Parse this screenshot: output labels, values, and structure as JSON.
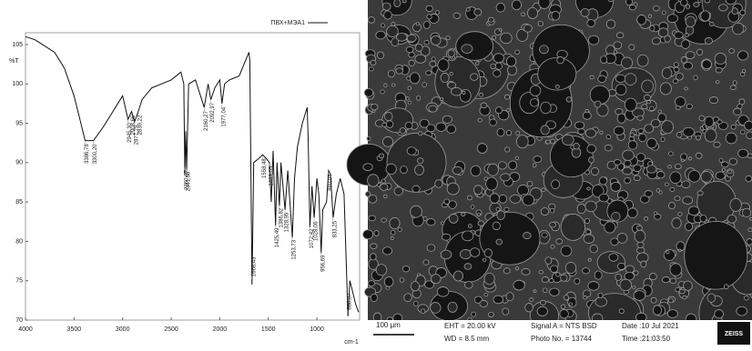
{
  "chart_data": {
    "type": "line",
    "legend": "ПВХ+МЭА1",
    "ylabel": "%T",
    "xlabel": "cm-1",
    "xlim": [
      4000,
      560
    ],
    "xticks": [
      4000,
      3500,
      3000,
      2500,
      2000,
      1500,
      1000
    ],
    "ylim": [
      70,
      106.5
    ],
    "yticks": [
      70,
      75,
      80,
      85,
      90,
      95,
      100,
      105
    ],
    "series": [
      {
        "name": "ПВХ+МЭА1",
        "color": "#111111",
        "x": [
          4000,
          3900,
          3800,
          3700,
          3600,
          3500,
          3450,
          3400,
          3386,
          3300,
          3200,
          3100,
          3000,
          2945,
          2908,
          2877,
          2839,
          2800,
          2700,
          2600,
          2500,
          2400,
          2370,
          2360,
          2350,
          2341,
          2320,
          2250,
          2160,
          2120,
          2092,
          2050,
          2000,
          1977,
          1950,
          1900,
          1800,
          1700,
          1690,
          1668,
          1650,
          1600,
          1558,
          1520,
          1489,
          1470,
          1450,
          1425,
          1410,
          1386,
          1370,
          1328,
          1300,
          1253,
          1230,
          1200,
          1150,
          1100,
          1090,
          1072,
          1050,
          1028,
          1000,
          980,
          956,
          940,
          900,
          880,
          860,
          833,
          800,
          760,
          720,
          680,
          660,
          640,
          600,
          570
        ],
        "values": [
          106,
          105.6,
          104.8,
          104,
          102,
          98.5,
          96,
          93.5,
          92.8,
          92.8,
          94.5,
          96.5,
          98.5,
          95.5,
          96.5,
          95.2,
          96.5,
          98,
          99.5,
          100,
          100.5,
          101.5,
          100,
          88.5,
          94,
          89,
          100,
          100.5,
          97,
          100,
          98,
          99.5,
          100.5,
          97.5,
          100,
          100.5,
          101,
          104,
          103,
          74.5,
          90,
          90.5,
          91,
          90.5,
          90,
          85,
          91.5,
          82,
          90,
          84.5,
          90,
          84,
          89,
          80.5,
          88,
          92,
          95,
          97,
          93,
          81.8,
          87,
          83,
          88,
          86,
          78.5,
          84,
          85,
          89,
          88.5,
          83,
          86,
          88,
          86,
          70.5,
          75,
          74,
          72,
          71
        ]
      }
    ],
    "peak_labels": [
      {
        "value": 3386.78,
        "label": "3386,78"
      },
      {
        "value": 3300.2,
        "label": "3300,20"
      },
      {
        "value": 2945.3,
        "label": "2945,30"
      },
      {
        "value": 2908.65,
        "label": "2908,65"
      },
      {
        "value": 2877.79,
        "label": "2877,79"
      },
      {
        "value": 2839.22,
        "label": "2839,22"
      },
      {
        "value": 2360.87,
        "label": "2360,87"
      },
      {
        "value": 2341.58,
        "label": "2341,58"
      },
      {
        "value": 2160.27,
        "label": "2160,27"
      },
      {
        "value": 2092.97,
        "label": "2092,97"
      },
      {
        "value": 1977.04,
        "label": "1977,04"
      },
      {
        "value": 1668.43,
        "label": "1668,43"
      },
      {
        "value": 1558.48,
        "label": "1558,48"
      },
      {
        "value": 1489.05,
        "label": "1489,05"
      },
      {
        "value": 1425.49,
        "label": "1425,49"
      },
      {
        "value": 1386.82,
        "label": "1386,82"
      },
      {
        "value": 1328.95,
        "label": "1328,95"
      },
      {
        "value": 1253.73,
        "label": "1253,73"
      },
      {
        "value": 1072.42,
        "label": "1072,42"
      },
      {
        "value": 1028.06,
        "label": "1028,06"
      },
      {
        "value": 956.69,
        "label": "956,69"
      },
      {
        "value": 880.04,
        "label": "880,04"
      },
      {
        "value": 833.25,
        "label": "833,25"
      },
      {
        "value": 680.87,
        "label": "680,87"
      }
    ]
  },
  "micrograph": {
    "scale_bar": "100 µm",
    "eht": "EHT = 20.00 kV",
    "wd": "WD =  8.5 mm",
    "signal": "Signal A = NTS BSD",
    "photo": "Photo No. = 13744",
    "date": "Date :10 Jul 2021",
    "time": "Time :21:03:50",
    "brand": "ZEISS"
  }
}
